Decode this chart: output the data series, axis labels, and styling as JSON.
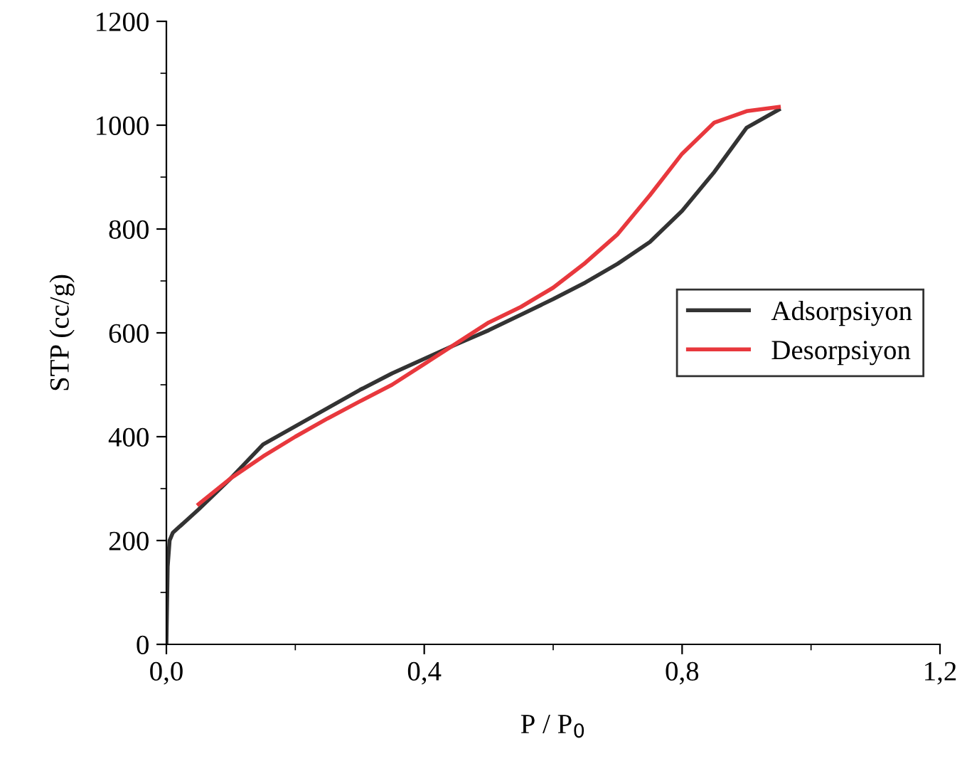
{
  "chart_data": {
    "type": "line",
    "xlabel": "P / P$_{0}$",
    "ylabel": "STP (cc/g)",
    "series": [
      {
        "name": "Adsorpsiyon",
        "color": "#333333",
        "x": [
          0,
          0.002,
          0.005,
          0.01,
          0.05,
          0.1,
          0.15,
          0.2,
          0.25,
          0.3,
          0.35,
          0.4,
          0.45,
          0.5,
          0.55,
          0.6,
          0.65,
          0.7,
          0.75,
          0.8,
          0.85,
          0.9,
          0.95
        ],
        "values": [
          0,
          150,
          200,
          215,
          260,
          320,
          385,
          420,
          455,
          490,
          522,
          550,
          578,
          605,
          635,
          665,
          697,
          733,
          775,
          835,
          910,
          995,
          1030
        ]
      },
      {
        "name": "Desorpsiyon",
        "color": "#e8383d",
        "x": [
          0.05,
          0.1,
          0.15,
          0.2,
          0.25,
          0.3,
          0.35,
          0.4,
          0.45,
          0.5,
          0.55,
          0.6,
          0.65,
          0.7,
          0.75,
          0.8,
          0.85,
          0.9,
          0.95
        ],
        "values": [
          270,
          320,
          362,
          400,
          435,
          468,
          500,
          540,
          580,
          620,
          650,
          687,
          735,
          790,
          865,
          945,
          1005,
          1027,
          1035
        ]
      }
    ],
    "xlim": [
      0,
      1.2
    ],
    "xticks": [
      {
        "value": 0,
        "label": "0,0"
      },
      {
        "value": 0.4,
        "label": "0,4"
      },
      {
        "value": 0.8,
        "label": "0,8"
      },
      {
        "value": 1.2,
        "label": "1,2"
      }
    ],
    "ylim": [
      0,
      1200
    ],
    "yticks": [
      0,
      200,
      400,
      600,
      800,
      1000,
      1200
    ],
    "legend": "center right",
    "grid": false,
    "marker": "none",
    "line_style": "solid"
  }
}
